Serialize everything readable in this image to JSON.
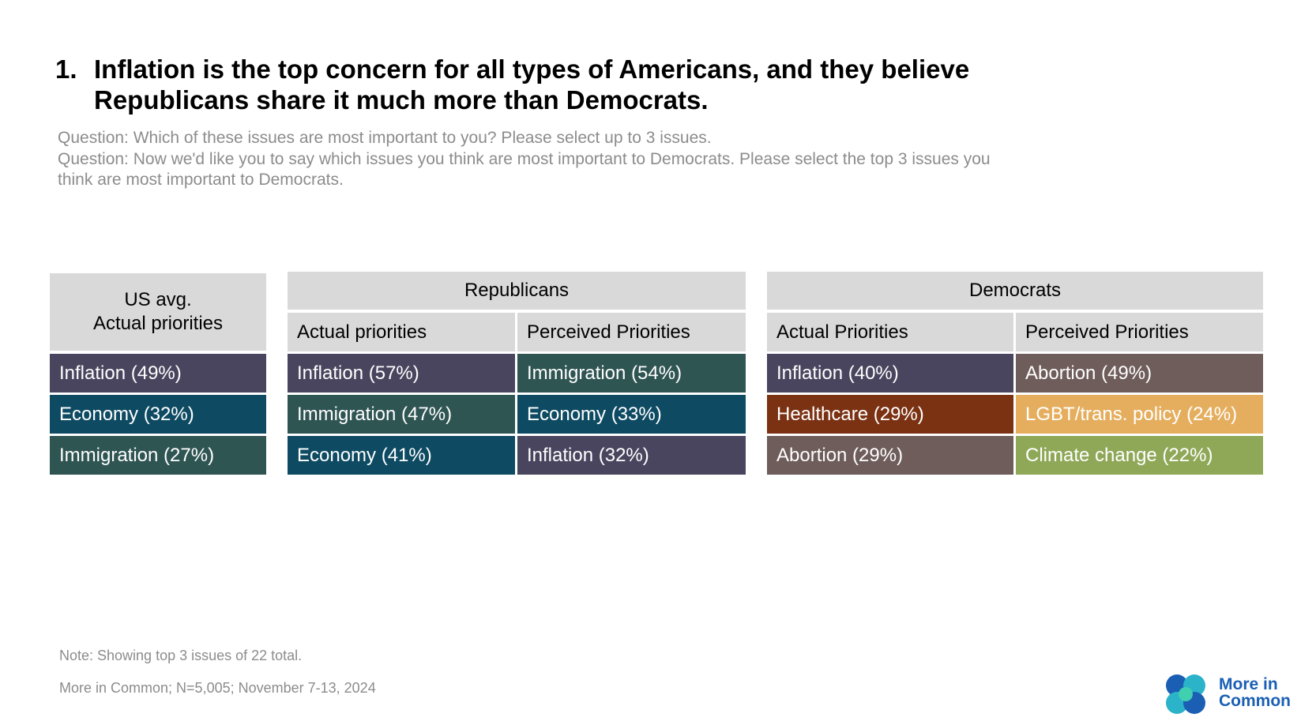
{
  "headline": {
    "number": "1.",
    "line1": "Inflation is the top concern for all types of Americans, and they believe",
    "line2": "Republicans share it much more than Democrats."
  },
  "questions": {
    "q1": "Question: Which of these issues are most important to you? Please select up to 3 issues.",
    "q2": "Question: Now we'd like you to say which issues you think are most important to Democrats. Please select the top 3 issues you",
    "q3": "think are most important to Democrats."
  },
  "us_avg": {
    "header_line1": "US avg.",
    "header_line2": "Actual priorities",
    "rows": [
      {
        "label": "Inflation (49%)",
        "color": "#4a455e"
      },
      {
        "label": "Economy (32%)",
        "color": "#0e4b63"
      },
      {
        "label": "Immigration (27%)",
        "color": "#2f5553"
      }
    ]
  },
  "republicans": {
    "title": "Republicans",
    "col_actual": "Actual priorities",
    "col_perceived": "Perceived Priorities",
    "actual": [
      {
        "label": "Inflation (57%)",
        "color": "#4a455e"
      },
      {
        "label": "Immigration (47%)",
        "color": "#2f5553"
      },
      {
        "label": "Economy (41%)",
        "color": "#0e4b63"
      }
    ],
    "perceived": [
      {
        "label": "Immigration (54%)",
        "color": "#2f5553"
      },
      {
        "label": "Economy (33%)",
        "color": "#0e4b63"
      },
      {
        "label": "Inflation (32%)",
        "color": "#4a455e"
      }
    ]
  },
  "democrats": {
    "title": "Democrats",
    "col_actual": "Actual Priorities",
    "col_perceived": "Perceived Priorities",
    "actual": [
      {
        "label": "Inflation (40%)",
        "color": "#4a455e"
      },
      {
        "label": "Healthcare (29%)",
        "color": "#7b3213"
      },
      {
        "label": "Abortion (29%)",
        "color": "#6e5d5a"
      }
    ],
    "perceived": [
      {
        "label": "Abortion (49%)",
        "color": "#6e5d5a"
      },
      {
        "label": "LGBT/trans. policy (24%)",
        "color": "#e5ae5e"
      },
      {
        "label": "Climate change (22%)",
        "color": "#8fa858"
      }
    ]
  },
  "footer": {
    "note": "Note: Showing top 3 issues of 22 total.",
    "source": "More in Common; N=5,005; November 7-13, 2024"
  },
  "logo": {
    "line1": "More in",
    "line2": "Common",
    "brand_color": "#1a5fb4"
  }
}
